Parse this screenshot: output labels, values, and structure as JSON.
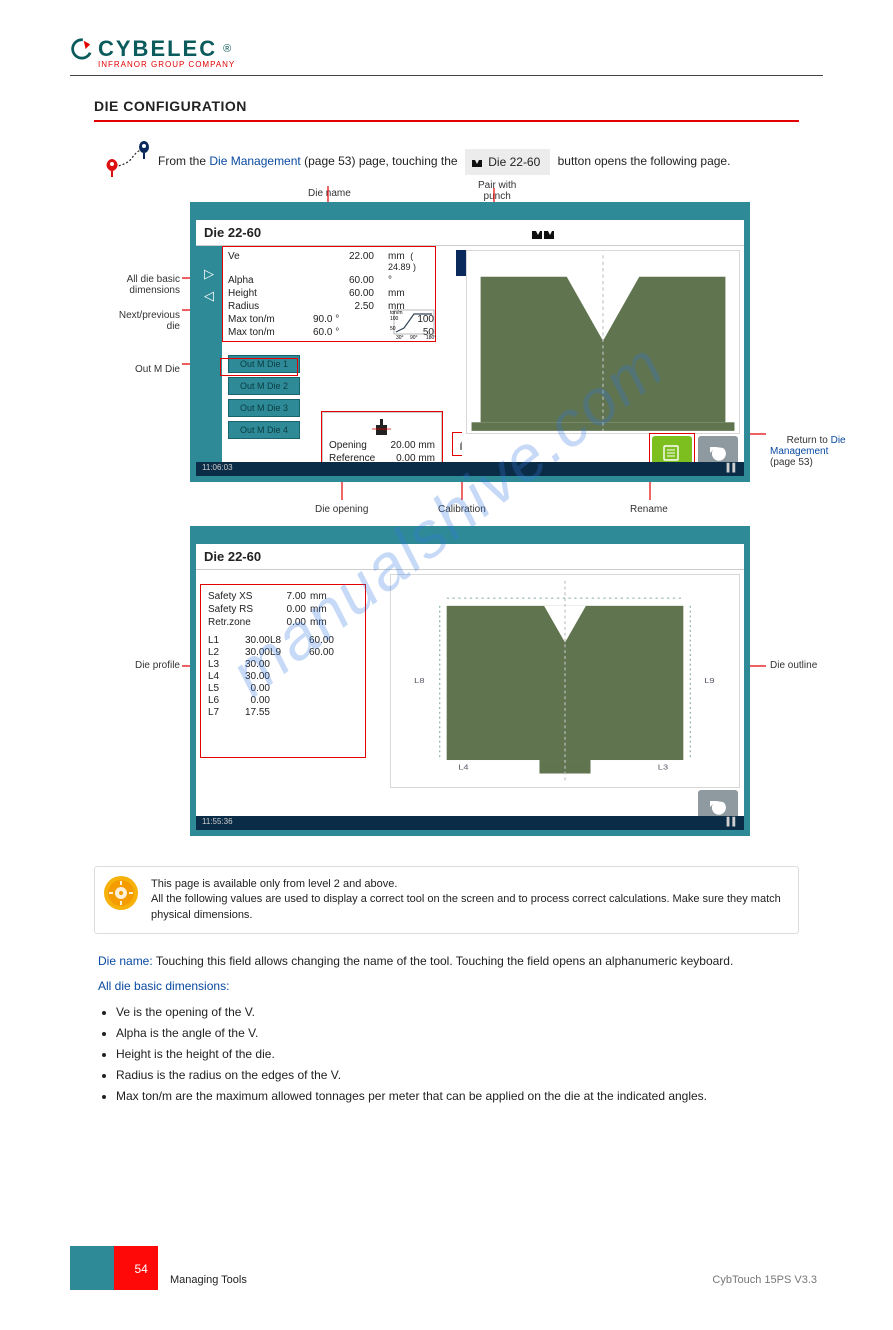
{
  "brand": {
    "name": "CYBELEC",
    "name_color": "#0b5a5c",
    "accent_color": "#e20000",
    "subtitle": "INFRANOR GROUP COMPANY",
    "subtitle_color": "#e20000",
    "registered": "®"
  },
  "section_title": "Die Configuration",
  "nav_line": {
    "prefix": "From the",
    "link_text": "Die Management",
    "link_page": "(page 53)",
    "mid": "page, touching the",
    "chip_label": "Die 22-60",
    "tail": "button opens the following page."
  },
  "callouts": {
    "die_name": "Die name",
    "pair_punch": "Pair with\npunch",
    "all_die_basic": "All die basic\ndimensions",
    "next_prev": "Next/previous\ndie",
    "return_to": "Return to",
    "return_link": "Die\nManagement",
    "return_page": "(page 53)",
    "out_m_die": "Out M Die",
    "die_opening": "Die opening",
    "calibration": "Calibration",
    "rename": "Rename",
    "die_profile": "Die profile",
    "die_outline": "Die outline"
  },
  "screen1": {
    "title": "Die 22-60",
    "time": "11:06:03",
    "params": [
      {
        "label": "Ve",
        "value": "22.00",
        "unit": "mm",
        "extra": "(  24.89 )"
      },
      {
        "label": "Alpha",
        "value": "60.00",
        "unit": "°"
      },
      {
        "label": "Height",
        "value": "60.00",
        "unit": "mm"
      },
      {
        "label": "Radius",
        "value": "2.50",
        "unit": "mm"
      },
      {
        "label": "Max ton/m",
        "angle": "90.0 °",
        "value": "100"
      },
      {
        "label": "Max ton/m",
        "angle": "60.0 °",
        "value": "50"
      }
    ],
    "chart_ticks": [
      "30°",
      "90°",
      "180°"
    ],
    "chart_ylabel": "ton/m",
    "chart_ymax": "100",
    "chart_ymid": "50",
    "out_buttons": [
      "Out M Die 1",
      "Out M Die 2",
      "Out M Die 3",
      "Out M Die 4"
    ],
    "opening_rows": [
      {
        "l": "Opening",
        "v": "20.00",
        "u": "mm"
      },
      {
        "l": "Reference",
        "v": "0.00",
        "u": "mm"
      }
    ],
    "colors": {
      "frame": "#2e8a97",
      "die": "#5f744f",
      "btn_green": "#7cbf1f",
      "btn_gray": "#8e9aa0",
      "redbox": "#e20000",
      "blue": "#0a2a5c"
    }
  },
  "screen2": {
    "title": "Die 22-60",
    "time": "11:55:36",
    "safety_rows": [
      {
        "l": "Safety XS",
        "v": "7.00",
        "u": "mm"
      },
      {
        "l": "Safety RS",
        "v": "0.00",
        "u": "mm"
      },
      {
        "l": "Retr.zone",
        "v": "0.00",
        "u": "mm"
      }
    ],
    "L_table": [
      [
        "L1",
        "30.00",
        "L8",
        "60.00"
      ],
      [
        "L2",
        "30.00",
        "L9",
        "60.00"
      ],
      [
        "L3",
        "30.00",
        "",
        ""
      ],
      [
        "L4",
        "30.00",
        "",
        ""
      ],
      [
        "L5",
        "0.00",
        "",
        ""
      ],
      [
        "L6",
        "0.00",
        "",
        ""
      ],
      [
        "L7",
        "17.55",
        "",
        ""
      ]
    ]
  },
  "alert_text": "This page is available only from level 2 and above.\nAll the following values are used to display a correct tool on the screen and to process correct calculations. Make sure they match physical dimensions.",
  "body_para1_label": "Die name:",
  "body_para1_text": " Touching this field allows changing the name of the tool. Touching the field opens an alphanumeric keyboard.",
  "body_para2_label": "All die basic dimensions:",
  "body_li": [
    "Ve is the opening of the V.",
    "Alpha is the angle of the V.",
    "Height is the height of the die.",
    "Radius is the radius on the edges of the V.",
    "Max ton/m are the maximum allowed tonnages per meter that can be applied on the die at the indicated angles."
  ],
  "footer": {
    "page": "54",
    "center": "Managing Tools",
    "right": "CybTouch 15PS    V3.3"
  }
}
